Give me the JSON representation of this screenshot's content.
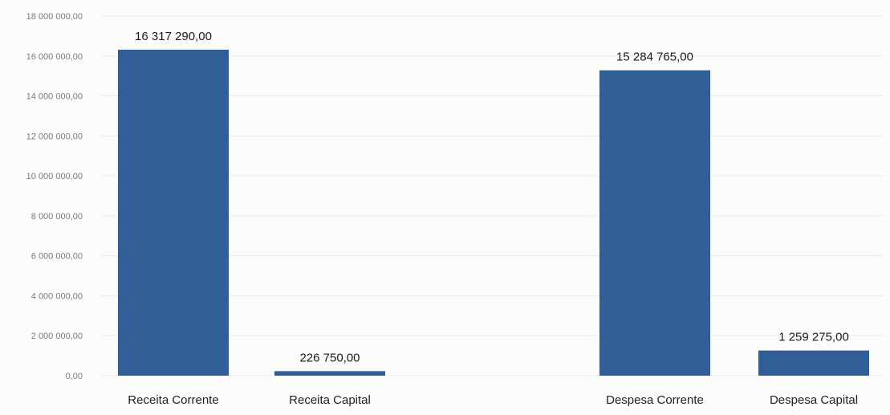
{
  "chart_data": {
    "type": "bar",
    "categories": [
      "Receita Corrente",
      "Receita  Capital",
      "Despesa Corrente",
      "Despesa Capital"
    ],
    "values": [
      16317290,
      226750,
      15284765,
      1259275
    ],
    "data_labels": [
      "16 317 290,00",
      "226 750,00",
      "15 284 765,00",
      "1 259 275,00"
    ],
    "ylim": [
      0,
      18000000
    ],
    "yticks": [
      {
        "value": 0,
        "label": "0,00"
      },
      {
        "value": 2000000,
        "label": "2 000 000,00"
      },
      {
        "value": 4000000,
        "label": "4 000 000,00"
      },
      {
        "value": 6000000,
        "label": "6 000 000,00"
      },
      {
        "value": 8000000,
        "label": "8 000 000,00"
      },
      {
        "value": 10000000,
        "label": "10 000 000,00"
      },
      {
        "value": 12000000,
        "label": "12 000 000,00"
      },
      {
        "value": 14000000,
        "label": "14 000 000,00"
      },
      {
        "value": 16000000,
        "label": "16 000 000,00"
      },
      {
        "value": 18000000,
        "label": "18 000 000,00"
      }
    ],
    "grid": true,
    "legend": "none",
    "bar_color": "#2f5f96"
  }
}
